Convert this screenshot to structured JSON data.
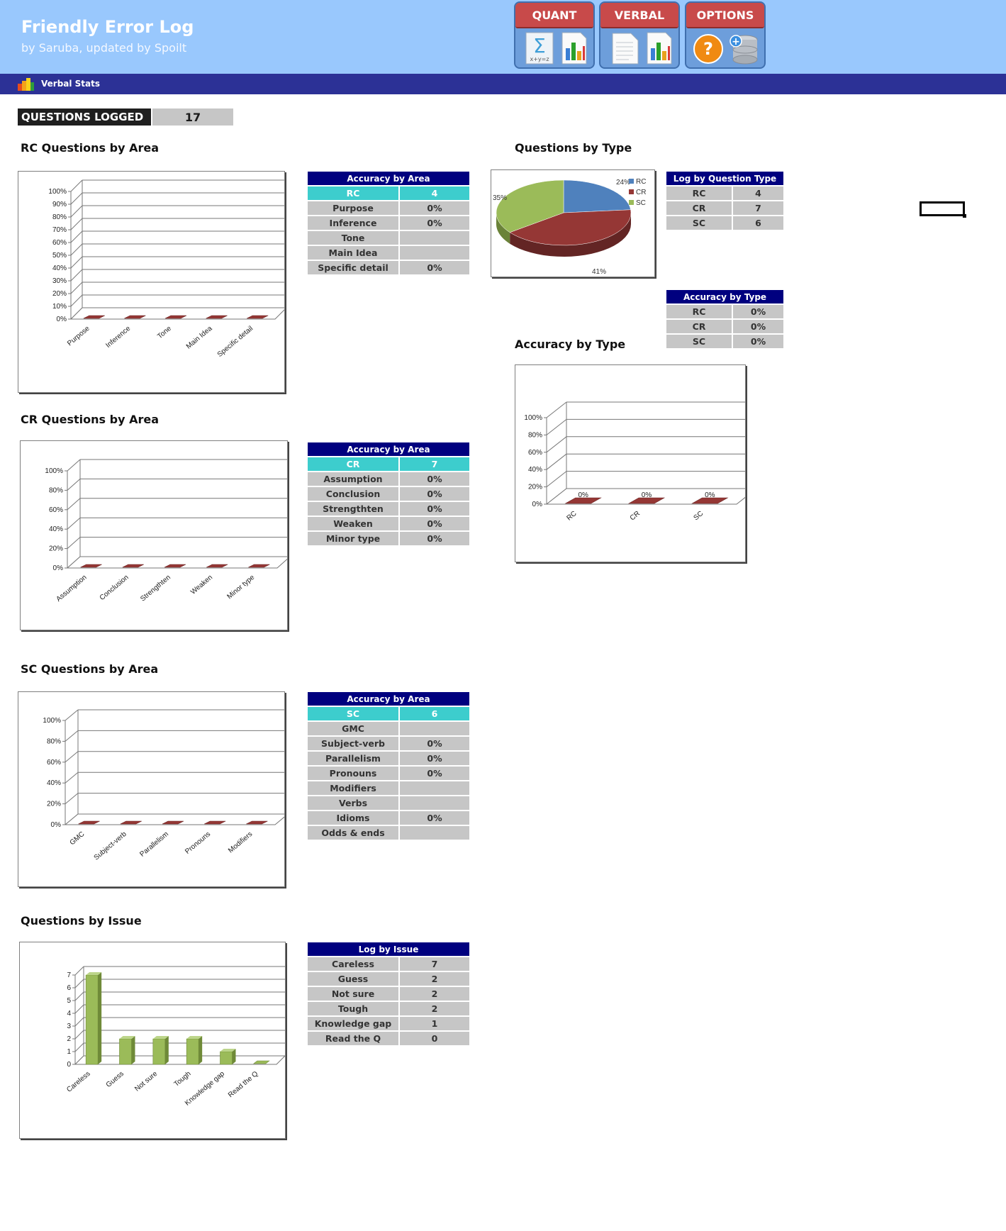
{
  "app": {
    "title": "Friendly Error Log",
    "subtitle": "by Saruba, updated by Spoilt"
  },
  "nav": {
    "quant": {
      "label": "QUANT",
      "icons": [
        "sigma-icon",
        "bar-chart-icon"
      ]
    },
    "verbal": {
      "label": "VERBAL",
      "icons": [
        "document-icon",
        "bar-chart-icon"
      ]
    },
    "options": {
      "label": "OPTIONS",
      "icons": [
        "help-icon",
        "database-icon"
      ]
    }
  },
  "subbar": {
    "label": "Verbal Stats",
    "icon": "bar-chart-icon"
  },
  "questions_logged": {
    "label": "QUESTIONS LOGGED",
    "value": "17"
  },
  "sections": {
    "rc": "RC Questions by Area",
    "cr": "CR Questions by Area",
    "sc": "SC Questions by Area",
    "issue": "Questions by Issue",
    "type": "Questions by Type",
    "acc_type": "Accuracy by Type"
  },
  "rc_table": {
    "header": "Accuracy by Area",
    "type": "RC",
    "count": "4",
    "rows": [
      {
        "area": "Purpose",
        "acc": "0%"
      },
      {
        "area": "Inference",
        "acc": "0%"
      },
      {
        "area": "Tone",
        "acc": ""
      },
      {
        "area": "Main Idea",
        "acc": ""
      },
      {
        "area": "Specific detail",
        "acc": "0%"
      }
    ]
  },
  "cr_table": {
    "header": "Accuracy by Area",
    "type": "CR",
    "count": "7",
    "rows": [
      {
        "area": "Assumption",
        "acc": "0%"
      },
      {
        "area": "Conclusion",
        "acc": "0%"
      },
      {
        "area": "Strengthten",
        "acc": "0%"
      },
      {
        "area": "Weaken",
        "acc": "0%"
      },
      {
        "area": "Minor type",
        "acc": "0%"
      }
    ]
  },
  "sc_table": {
    "header": "Accuracy by Area",
    "type": "SC",
    "count": "6",
    "rows": [
      {
        "area": "GMC",
        "acc": ""
      },
      {
        "area": "Subject-verb",
        "acc": "0%"
      },
      {
        "area": "Parallelism",
        "acc": "0%"
      },
      {
        "area": "Pronouns",
        "acc": "0%"
      },
      {
        "area": "Modifiers",
        "acc": ""
      },
      {
        "area": "Verbs",
        "acc": ""
      },
      {
        "area": "Idioms",
        "acc": "0%"
      },
      {
        "area": "Odds & ends",
        "acc": ""
      }
    ]
  },
  "issue_table": {
    "header": "Log by Issue",
    "rows": [
      {
        "issue": "Careless",
        "count": "7"
      },
      {
        "issue": "Guess",
        "count": "2"
      },
      {
        "issue": "Not sure",
        "count": "2"
      },
      {
        "issue": "Tough",
        "count": "2"
      },
      {
        "issue": "Knowledge gap",
        "count": "1"
      },
      {
        "issue": "Read the Q",
        "count": "0"
      }
    ]
  },
  "type_log_table": {
    "header": "Log by Question Type",
    "rows": [
      {
        "type": "RC",
        "count": "4"
      },
      {
        "type": "CR",
        "count": "7"
      },
      {
        "type": "SC",
        "count": "6"
      }
    ]
  },
  "type_acc_table": {
    "header": "Accuracy by  Type",
    "rows": [
      {
        "type": "RC",
        "acc": "0%"
      },
      {
        "type": "CR",
        "acc": "0%"
      },
      {
        "type": "SC",
        "acc": "0%"
      }
    ]
  },
  "colors": {
    "rc": "#4f81bd",
    "cr": "#953735",
    "sc": "#9bbb59",
    "accent_red": "#c84a4a",
    "navy": "#00007f",
    "cyan": "#3dcdcd"
  },
  "chart_data": [
    {
      "id": "rc",
      "type": "bar",
      "categories": [
        "Purpose",
        "Inference",
        "Tone",
        "Main Idea",
        "Specific detail"
      ],
      "values": [
        0,
        0,
        0,
        0,
        0
      ],
      "yticks": [
        "0%",
        "10%",
        "20%",
        "30%",
        "40%",
        "50%",
        "60%",
        "70%",
        "80%",
        "90%",
        "100%"
      ],
      "ylim": [
        0,
        100
      ]
    },
    {
      "id": "cr",
      "type": "bar",
      "categories": [
        "Assumption",
        "Conclusion",
        "Strengthten",
        "Weaken",
        "Minor type"
      ],
      "values": [
        0,
        0,
        0,
        0,
        0
      ],
      "yticks": [
        "0%",
        "20%",
        "40%",
        "60%",
        "80%",
        "100%"
      ],
      "ylim": [
        0,
        100
      ]
    },
    {
      "id": "sc",
      "type": "bar",
      "categories": [
        "GMC",
        "Subject-verb",
        "Parallelism",
        "Pronouns",
        "Modifiers"
      ],
      "values": [
        0,
        0,
        0,
        0,
        0
      ],
      "yticks": [
        "0%",
        "20%",
        "40%",
        "60%",
        "80%",
        "100%"
      ],
      "ylim": [
        0,
        100
      ]
    },
    {
      "id": "issue",
      "type": "bar",
      "categories": [
        "Careless",
        "Guess",
        "Not sure",
        "Tough",
        "Knowledge gap",
        "Read the Q"
      ],
      "values": [
        7,
        2,
        2,
        2,
        1,
        0
      ],
      "yticks": [
        "0",
        "1",
        "2",
        "3",
        "4",
        "5",
        "6",
        "7"
      ],
      "ylim": [
        0,
        7
      ]
    },
    {
      "id": "acc_type",
      "type": "bar",
      "categories": [
        "RC",
        "CR",
        "SC"
      ],
      "values": [
        0,
        0,
        0
      ],
      "data_labels": [
        "0%",
        "0%",
        "0%"
      ],
      "yticks": [
        "0%",
        "20%",
        "40%",
        "60%",
        "80%",
        "100%"
      ],
      "ylim": [
        0,
        100
      ]
    },
    {
      "id": "type_pie",
      "type": "pie",
      "categories": [
        "RC",
        "CR",
        "SC"
      ],
      "values": [
        4,
        7,
        6
      ],
      "data_labels": [
        "24%",
        "41%",
        "35%"
      ],
      "legend": "top-right"
    }
  ]
}
